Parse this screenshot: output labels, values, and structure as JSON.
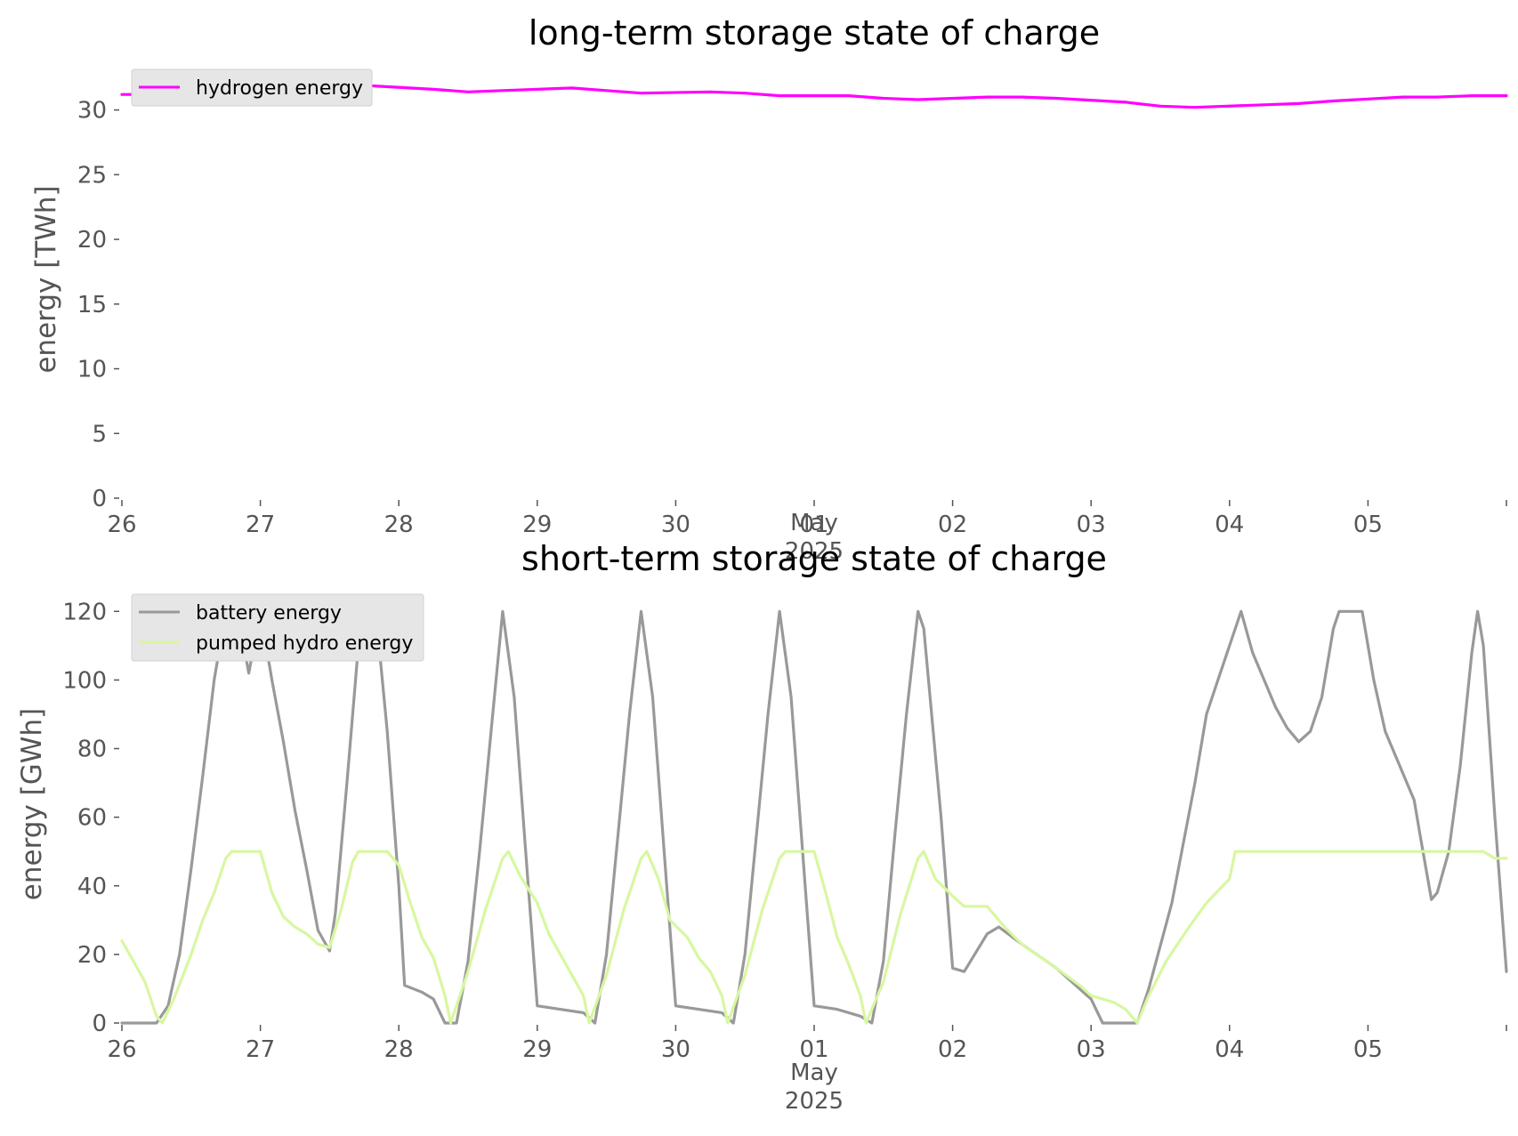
{
  "chart_data": [
    {
      "type": "line",
      "title": "long-term storage state of charge",
      "ylabel": "energy [TWh]",
      "xlabel": "",
      "x_ticks": [
        "26",
        "27",
        "28",
        "29",
        "30",
        "01",
        "02",
        "03",
        "04",
        "05"
      ],
      "x_month_label": "May",
      "x_year_label": "2025",
      "xlim": [
        "2025-04-26T00:00",
        "2025-05-06T00:00"
      ],
      "ylim": [
        0,
        33
      ],
      "y_ticks": [
        0,
        5,
        10,
        15,
        20,
        25,
        30
      ],
      "grid": false,
      "legend_position": "top-left",
      "x": [
        "2025-04-26T00:00",
        "2025-04-26T12:00",
        "2025-04-27T00:00",
        "2025-04-27T12:00",
        "2025-04-27T18:00",
        "2025-04-28T06:00",
        "2025-04-28T12:00",
        "2025-04-28T18:00",
        "2025-04-29T06:00",
        "2025-04-29T12:00",
        "2025-04-29T18:00",
        "2025-04-30T06:00",
        "2025-04-30T12:00",
        "2025-04-30T18:00",
        "2025-05-01T06:00",
        "2025-05-01T12:00",
        "2025-05-01T18:00",
        "2025-05-02T06:00",
        "2025-05-02T12:00",
        "2025-05-02T18:00",
        "2025-05-03T06:00",
        "2025-05-03T12:00",
        "2025-05-03T18:00",
        "2025-05-04T06:00",
        "2025-05-04T12:00",
        "2025-05-04T18:00",
        "2025-05-05T06:00",
        "2025-05-05T12:00",
        "2025-05-05T18:00",
        "2025-05-06T00:00"
      ],
      "series": [
        {
          "name": "hydrogen energy",
          "color": "#ff00ff",
          "values": [
            31.2,
            31.2,
            31.4,
            31.8,
            31.9,
            31.6,
            31.4,
            31.5,
            31.7,
            31.5,
            31.3,
            31.4,
            31.3,
            31.1,
            31.1,
            30.9,
            30.8,
            31.0,
            31.0,
            30.9,
            30.6,
            30.3,
            30.2,
            30.4,
            30.5,
            30.7,
            31.0,
            31.0,
            31.1,
            31.1
          ]
        }
      ]
    },
    {
      "type": "line",
      "title": "short-term storage state of charge",
      "ylabel": "energy [GWh]",
      "xlabel": "",
      "x_ticks": [
        "26",
        "27",
        "28",
        "29",
        "30",
        "01",
        "02",
        "03",
        "04",
        "05"
      ],
      "x_month_label": "May",
      "x_year_label": "2025",
      "xlim": [
        "2025-04-26T00:00",
        "2025-05-06T00:00"
      ],
      "ylim": [
        0,
        125
      ],
      "y_ticks": [
        0,
        20,
        40,
        60,
        80,
        100,
        120
      ],
      "grid": false,
      "legend_position": "top-left",
      "series": [
        {
          "name": "battery energy",
          "color": "#999999",
          "points": [
            [
              "2025-04-26T00:00",
              0
            ],
            [
              "2025-04-26T06:00",
              0
            ],
            [
              "2025-04-26T08:00",
              5
            ],
            [
              "2025-04-26T10:00",
              20
            ],
            [
              "2025-04-26T12:00",
              45
            ],
            [
              "2025-04-26T14:00",
              72
            ],
            [
              "2025-04-26T16:00",
              100
            ],
            [
              "2025-04-26T18:00",
              120
            ],
            [
              "2025-04-26T20:00",
              120
            ],
            [
              "2025-04-26T22:00",
              102
            ],
            [
              "2025-04-27T00:00",
              120
            ],
            [
              "2025-04-27T02:00",
              100
            ],
            [
              "2025-04-27T04:00",
              82
            ],
            [
              "2025-04-27T06:00",
              62
            ],
            [
              "2025-04-27T08:00",
              45
            ],
            [
              "2025-04-27T10:00",
              27
            ],
            [
              "2025-04-27T12:00",
              21
            ],
            [
              "2025-04-27T13:00",
              32
            ],
            [
              "2025-04-27T15:00",
              70
            ],
            [
              "2025-04-27T17:00",
              110
            ],
            [
              "2025-04-27T18:00",
              120
            ],
            [
              "2025-04-27T20:00",
              120
            ],
            [
              "2025-04-27T22:00",
              85
            ],
            [
              "2025-04-28T00:00",
              40
            ],
            [
              "2025-04-28T01:00",
              11
            ],
            [
              "2025-04-28T04:00",
              9
            ],
            [
              "2025-04-28T06:00",
              7
            ],
            [
              "2025-04-28T08:00",
              0
            ],
            [
              "2025-04-28T10:00",
              0
            ],
            [
              "2025-04-28T12:00",
              18
            ],
            [
              "2025-04-28T14:00",
              50
            ],
            [
              "2025-04-28T16:00",
              85
            ],
            [
              "2025-04-28T18:00",
              120
            ],
            [
              "2025-04-28T20:00",
              95
            ],
            [
              "2025-04-28T22:00",
              50
            ],
            [
              "2025-04-29T00:00",
              5
            ],
            [
              "2025-04-29T04:00",
              4
            ],
            [
              "2025-04-29T08:00",
              3
            ],
            [
              "2025-04-29T10:00",
              0
            ],
            [
              "2025-04-29T12:00",
              20
            ],
            [
              "2025-04-29T14:00",
              55
            ],
            [
              "2025-04-29T16:00",
              90
            ],
            [
              "2025-04-29T18:00",
              120
            ],
            [
              "2025-04-29T20:00",
              95
            ],
            [
              "2025-04-29T22:00",
              50
            ],
            [
              "2025-04-30T00:00",
              5
            ],
            [
              "2025-04-30T04:00",
              4
            ],
            [
              "2025-04-30T08:00",
              3
            ],
            [
              "2025-04-30T10:00",
              0
            ],
            [
              "2025-04-30T12:00",
              20
            ],
            [
              "2025-04-30T14:00",
              55
            ],
            [
              "2025-04-30T16:00",
              90
            ],
            [
              "2025-04-30T18:00",
              120
            ],
            [
              "2025-04-30T20:00",
              95
            ],
            [
              "2025-04-30T22:00",
              50
            ],
            [
              "2025-05-01T00:00",
              5
            ],
            [
              "2025-05-01T04:00",
              4
            ],
            [
              "2025-05-01T08:00",
              2
            ],
            [
              "2025-05-01T10:00",
              0
            ],
            [
              "2025-05-01T12:00",
              18
            ],
            [
              "2025-05-01T14:00",
              55
            ],
            [
              "2025-05-01T16:00",
              90
            ],
            [
              "2025-05-01T18:00",
              120
            ],
            [
              "2025-05-01T19:00",
              115
            ],
            [
              "2025-05-01T22:00",
              60
            ],
            [
              "2025-05-02T00:00",
              16
            ],
            [
              "2025-05-02T02:00",
              15
            ],
            [
              "2025-05-02T06:00",
              26
            ],
            [
              "2025-05-02T08:00",
              28
            ],
            [
              "2025-05-02T12:00",
              23
            ],
            [
              "2025-05-02T18:00",
              16
            ],
            [
              "2025-05-03T00:00",
              7
            ],
            [
              "2025-05-03T02:00",
              0
            ],
            [
              "2025-05-03T08:00",
              0
            ],
            [
              "2025-05-03T10:00",
              10
            ],
            [
              "2025-05-03T14:00",
              35
            ],
            [
              "2025-05-03T18:00",
              70
            ],
            [
              "2025-05-03T20:00",
              90
            ],
            [
              "2025-05-03T22:00",
              100
            ],
            [
              "2025-05-04T00:00",
              110
            ],
            [
              "2025-05-04T02:00",
              120
            ],
            [
              "2025-05-04T04:00",
              108
            ],
            [
              "2025-05-04T08:00",
              92
            ],
            [
              "2025-05-04T10:00",
              86
            ],
            [
              "2025-05-04T12:00",
              82
            ],
            [
              "2025-05-04T14:00",
              85
            ],
            [
              "2025-05-04T16:00",
              95
            ],
            [
              "2025-05-04T18:00",
              115
            ],
            [
              "2025-05-04T19:00",
              120
            ],
            [
              "2025-05-04T23:00",
              120
            ],
            [
              "2025-05-05T01:00",
              100
            ],
            [
              "2025-05-05T03:00",
              85
            ],
            [
              "2025-05-05T06:00",
              73
            ],
            [
              "2025-05-05T08:00",
              65
            ],
            [
              "2025-05-05T09:00",
              55
            ],
            [
              "2025-05-05T11:00",
              36
            ],
            [
              "2025-05-05T12:00",
              38
            ],
            [
              "2025-05-05T14:00",
              50
            ],
            [
              "2025-05-05T16:00",
              75
            ],
            [
              "2025-05-05T18:00",
              108
            ],
            [
              "2025-05-05T19:00",
              120
            ],
            [
              "2025-05-05T20:00",
              110
            ],
            [
              "2025-05-05T22:00",
              60
            ],
            [
              "2025-05-06T00:00",
              15
            ]
          ]
        },
        {
          "name": "pumped hydro energy",
          "color": "#d8f7a1",
          "points": [
            [
              "2025-04-26T00:00",
              24
            ],
            [
              "2025-04-26T02:00",
              18
            ],
            [
              "2025-04-26T04:00",
              12
            ],
            [
              "2025-04-26T06:00",
              2
            ],
            [
              "2025-04-26T07:00",
              0
            ],
            [
              "2025-04-26T09:00",
              7
            ],
            [
              "2025-04-26T12:00",
              20
            ],
            [
              "2025-04-26T14:00",
              30
            ],
            [
              "2025-04-26T16:00",
              38
            ],
            [
              "2025-04-26T18:00",
              48
            ],
            [
              "2025-04-26T19:00",
              50
            ],
            [
              "2025-04-27T00:00",
              50
            ],
            [
              "2025-04-27T02:00",
              38
            ],
            [
              "2025-04-27T04:00",
              31
            ],
            [
              "2025-04-27T06:00",
              28
            ],
            [
              "2025-04-27T08:00",
              26
            ],
            [
              "2025-04-27T10:00",
              23
            ],
            [
              "2025-04-27T12:00",
              22
            ],
            [
              "2025-04-27T14:00",
              33
            ],
            [
              "2025-04-27T16:00",
              47
            ],
            [
              "2025-04-27T17:00",
              50
            ],
            [
              "2025-04-27T22:00",
              50
            ],
            [
              "2025-04-28T00:00",
              46
            ],
            [
              "2025-04-28T02:00",
              35
            ],
            [
              "2025-04-28T04:00",
              25
            ],
            [
              "2025-04-28T06:00",
              19
            ],
            [
              "2025-04-28T08:00",
              8
            ],
            [
              "2025-04-28T09:00",
              0
            ],
            [
              "2025-04-28T12:00",
              15
            ],
            [
              "2025-04-28T15:00",
              33
            ],
            [
              "2025-04-28T18:00",
              48
            ],
            [
              "2025-04-28T19:00",
              50
            ],
            [
              "2025-04-28T21:00",
              43
            ],
            [
              "2025-04-29T00:00",
              35
            ],
            [
              "2025-04-29T02:00",
              26
            ],
            [
              "2025-04-29T05:00",
              17
            ],
            [
              "2025-04-29T08:00",
              8
            ],
            [
              "2025-04-29T09:00",
              0
            ],
            [
              "2025-04-29T12:00",
              14
            ],
            [
              "2025-04-29T15:00",
              33
            ],
            [
              "2025-04-29T18:00",
              48
            ],
            [
              "2025-04-29T19:00",
              50
            ],
            [
              "2025-04-29T21:00",
              42
            ],
            [
              "2025-04-29T23:00",
              30
            ],
            [
              "2025-04-30T02:00",
              25
            ],
            [
              "2025-04-30T04:00",
              19
            ],
            [
              "2025-04-30T06:00",
              15
            ],
            [
              "2025-04-30T08:00",
              8
            ],
            [
              "2025-04-30T09:00",
              0
            ],
            [
              "2025-04-30T12:00",
              14
            ],
            [
              "2025-04-30T15:00",
              33
            ],
            [
              "2025-04-30T18:00",
              48
            ],
            [
              "2025-04-30T19:00",
              50
            ],
            [
              "2025-05-01T00:00",
              50
            ],
            [
              "2025-05-01T02:00",
              38
            ],
            [
              "2025-05-01T04:00",
              25
            ],
            [
              "2025-05-01T06:00",
              17
            ],
            [
              "2025-05-01T08:00",
              8
            ],
            [
              "2025-05-01T09:00",
              0
            ],
            [
              "2025-05-01T12:00",
              12
            ],
            [
              "2025-05-01T15:00",
              32
            ],
            [
              "2025-05-01T18:00",
              48
            ],
            [
              "2025-05-01T19:00",
              50
            ],
            [
              "2025-05-01T21:00",
              42
            ],
            [
              "2025-05-02T00:00",
              37
            ],
            [
              "2025-05-02T02:00",
              34
            ],
            [
              "2025-05-02T06:00",
              34
            ],
            [
              "2025-05-02T09:00",
              28
            ],
            [
              "2025-05-02T12:00",
              23
            ],
            [
              "2025-05-02T18:00",
              16
            ],
            [
              "2025-05-02T22:00",
              11
            ],
            [
              "2025-05-03T00:00",
              8
            ],
            [
              "2025-05-03T04:00",
              6
            ],
            [
              "2025-05-03T06:00",
              4
            ],
            [
              "2025-05-03T08:00",
              0
            ],
            [
              "2025-05-03T10:00",
              8
            ],
            [
              "2025-05-03T13:00",
              18
            ],
            [
              "2025-05-03T17:00",
              28
            ],
            [
              "2025-05-03T20:00",
              35
            ],
            [
              "2025-05-04T00:00",
              42
            ],
            [
              "2025-05-04T01:00",
              50
            ],
            [
              "2025-05-05T20:00",
              50
            ],
            [
              "2025-05-05T22:00",
              48
            ],
            [
              "2025-05-06T00:00",
              48
            ]
          ]
        }
      ]
    }
  ]
}
